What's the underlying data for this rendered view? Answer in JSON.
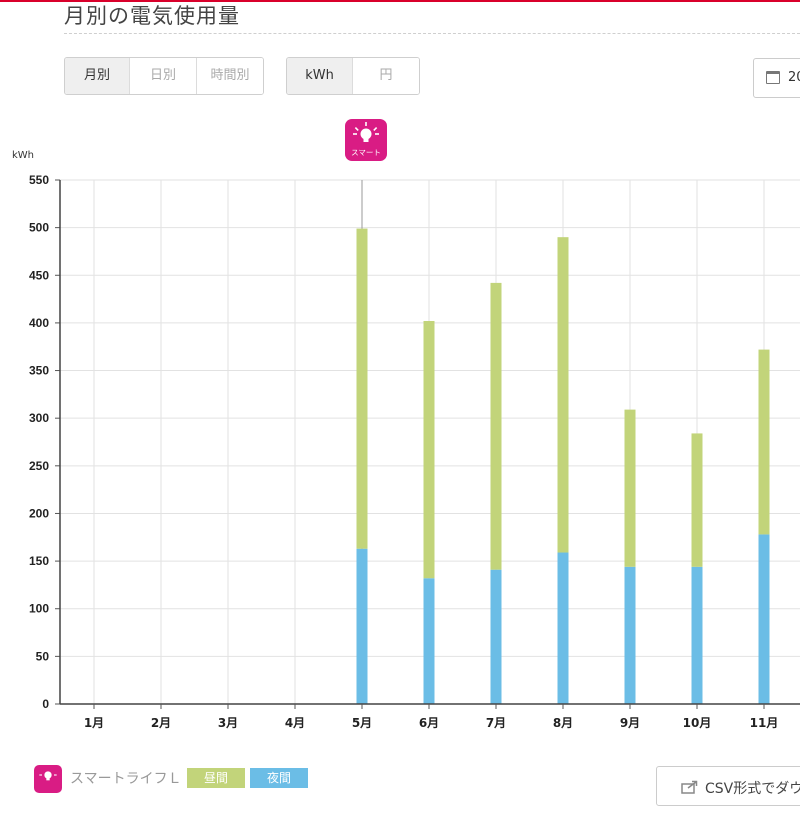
{
  "page": {
    "title": "月別の電気使用量"
  },
  "period_tabs": [
    {
      "label": "月別",
      "active": true
    },
    {
      "label": "日別",
      "active": false
    },
    {
      "label": "時間別",
      "active": false
    }
  ],
  "unit_tabs": [
    {
      "label": "kWh",
      "active": true
    },
    {
      "label": "円",
      "active": false
    }
  ],
  "date_picker": {
    "label": "20"
  },
  "plan_icon": {
    "text": "スマート"
  },
  "legend": {
    "plan_name": "スマートライフＬ",
    "day_label": "昼間",
    "night_label": "夜間",
    "day_color": "#c2d47a",
    "night_color": "#6bbde6"
  },
  "csv_button": {
    "label": "CSV形式でダウン"
  },
  "chart_data": {
    "type": "bar",
    "stacked": true,
    "ylabel": "kWh",
    "ylim": [
      0,
      550
    ],
    "yticks": [
      0,
      50,
      100,
      150,
      200,
      250,
      300,
      350,
      400,
      450,
      500,
      550
    ],
    "categories": [
      "1月",
      "2月",
      "3月",
      "4月",
      "5月",
      "6月",
      "7月",
      "8月",
      "9月",
      "10月",
      "11月"
    ],
    "series": [
      {
        "name": "夜間",
        "color": "#6bbde6",
        "values": [
          0,
          0,
          0,
          0,
          163,
          132,
          141,
          159,
          144,
          144,
          178
        ]
      },
      {
        "name": "昼間",
        "color": "#c2d47a",
        "values": [
          0,
          0,
          0,
          0,
          336,
          270,
          301,
          331,
          165,
          140,
          194
        ]
      }
    ],
    "plan_change_marker": {
      "category": "5月",
      "label": "スマート"
    },
    "grid": true
  }
}
